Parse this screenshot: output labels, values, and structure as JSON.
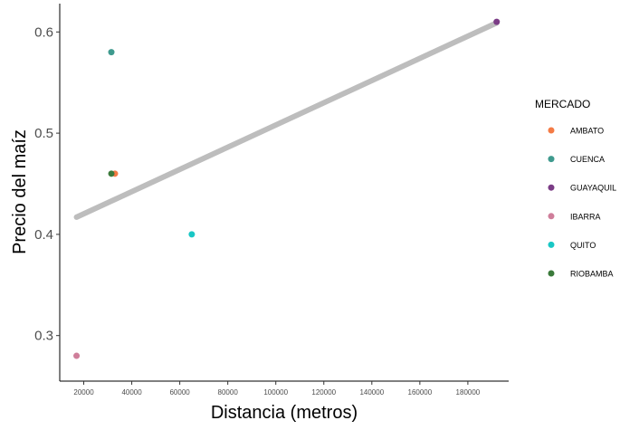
{
  "chart_data": {
    "type": "scatter",
    "title": "",
    "xlabel": "Distancia (metros)",
    "ylabel": "Precio del maíz",
    "xlim": [
      10000,
      197000
    ],
    "ylim": [
      0.255,
      0.628
    ],
    "x_ticks": [
      20000,
      40000,
      60000,
      80000,
      100000,
      120000,
      140000,
      160000,
      180000
    ],
    "x_tick_labels": [
      "20000",
      "40000",
      "60000",
      "80000",
      "100000",
      "120000",
      "140000",
      "160000",
      "180000"
    ],
    "y_ticks": [
      0.3,
      0.4,
      0.5,
      0.6
    ],
    "y_tick_labels": [
      "0.3",
      "0.4",
      "0.5",
      "0.6"
    ],
    "grid": false,
    "legend": {
      "title": "MERCADO",
      "position": "right"
    },
    "series": [
      {
        "name": "AMBATO",
        "color": "#f47b45",
        "points": [
          [
            33000,
            0.46
          ]
        ]
      },
      {
        "name": "CUENCA",
        "color": "#3f9a8e",
        "points": [
          [
            31500,
            0.58
          ]
        ]
      },
      {
        "name": "GUAYAQUIL",
        "color": "#7b3c86",
        "points": [
          [
            192000,
            0.61
          ]
        ]
      },
      {
        "name": "IBARRA",
        "color": "#cf7e9a",
        "points": [
          [
            17000,
            0.28
          ]
        ]
      },
      {
        "name": "QUITO",
        "color": "#19c7c5",
        "points": [
          [
            65000,
            0.4
          ]
        ]
      },
      {
        "name": "RIOBAMBA",
        "color": "#3b7a3b",
        "points": [
          [
            31500,
            0.46
          ]
        ]
      }
    ],
    "trend_line": {
      "color": "#bdbdbd",
      "x": [
        17000,
        192000
      ],
      "y": [
        0.417,
        0.609
      ]
    }
  }
}
